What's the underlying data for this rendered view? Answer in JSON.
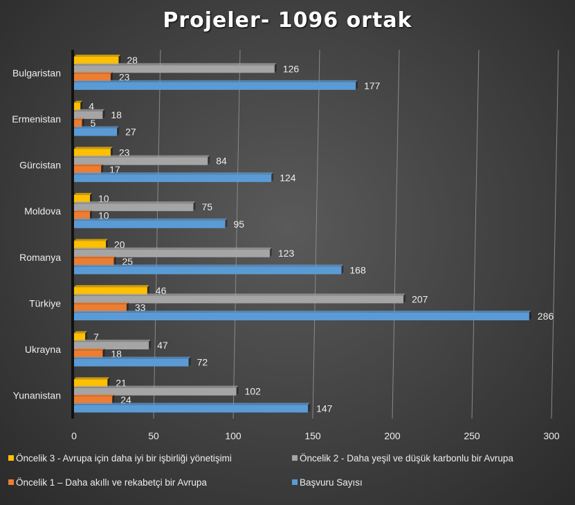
{
  "chart_data": {
    "type": "bar",
    "orientation": "horizontal",
    "title": "Projeler- 1096 ortak",
    "categories": [
      "Bulgaristan",
      "Ermenistan",
      "Gürcistan",
      "Moldova",
      "Romanya",
      "Türkiye",
      "Ukrayna",
      "Yunanistan"
    ],
    "series": [
      {
        "name": "Öncelik 3 - Avrupa için daha iyi bir işbirliği yönetişimi",
        "color": "#FFC000",
        "values": [
          28,
          4,
          23,
          10,
          20,
          46,
          7,
          21
        ]
      },
      {
        "name": "Öncelik 2 - Daha yeşil ve düşük karbonlu bir Avrupa",
        "color": "#A5A5A5",
        "values": [
          126,
          18,
          84,
          75,
          123,
          207,
          47,
          102
        ]
      },
      {
        "name": "Öncelik 1 – Daha akıllı ve rekabetçi bir Avrupa",
        "color": "#ED7D31",
        "values": [
          23,
          5,
          17,
          10,
          25,
          33,
          18,
          24
        ]
      },
      {
        "name": "Başvuru Sayısı",
        "color": "#5B9BD5",
        "values": [
          177,
          27,
          124,
          95,
          168,
          286,
          72,
          147
        ]
      }
    ],
    "xlim": [
      0,
      300
    ],
    "xticks": [
      "0",
      "50",
      "100",
      "150",
      "200",
      "250",
      "300"
    ],
    "grid": true,
    "legend_position": "bottom"
  }
}
